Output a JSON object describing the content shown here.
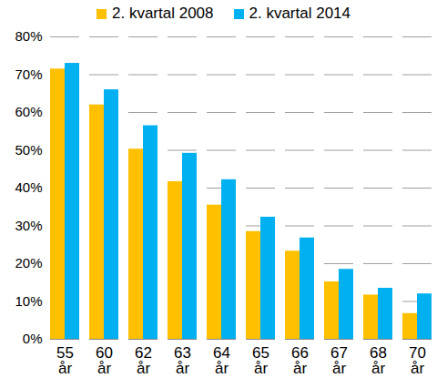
{
  "chart_data": {
    "type": "bar",
    "categories": [
      "55\når",
      "60\når",
      "62\når",
      "63\når",
      "64\når",
      "65\når",
      "66\når",
      "67\når",
      "68\når",
      "70\når"
    ],
    "series": [
      {
        "name": "2. kvartal 2008",
        "color": "#ffc000",
        "values": [
          71.5,
          62,
          50.3,
          41.7,
          35.5,
          28.5,
          23.3,
          15.2,
          11.7,
          6.8
        ]
      },
      {
        "name": "2. kvartal 2014",
        "color": "#00b0f0",
        "values": [
          73,
          66,
          56.5,
          49.2,
          42.2,
          32.3,
          26.8,
          18.5,
          13.5,
          12
        ]
      }
    ],
    "ylim": [
      0,
      80
    ],
    "yticks": [
      {
        "value": 0,
        "label": "0%"
      },
      {
        "value": 10,
        "label": "10%"
      },
      {
        "value": 20,
        "label": "20%"
      },
      {
        "value": 30,
        "label": "30%"
      },
      {
        "value": 40,
        "label": "40%"
      },
      {
        "value": 50,
        "label": "50%"
      },
      {
        "value": 60,
        "label": "60%"
      },
      {
        "value": 70,
        "label": "70%"
      },
      {
        "value": 80,
        "label": "80%"
      }
    ],
    "grid": true,
    "legend": "top"
  }
}
